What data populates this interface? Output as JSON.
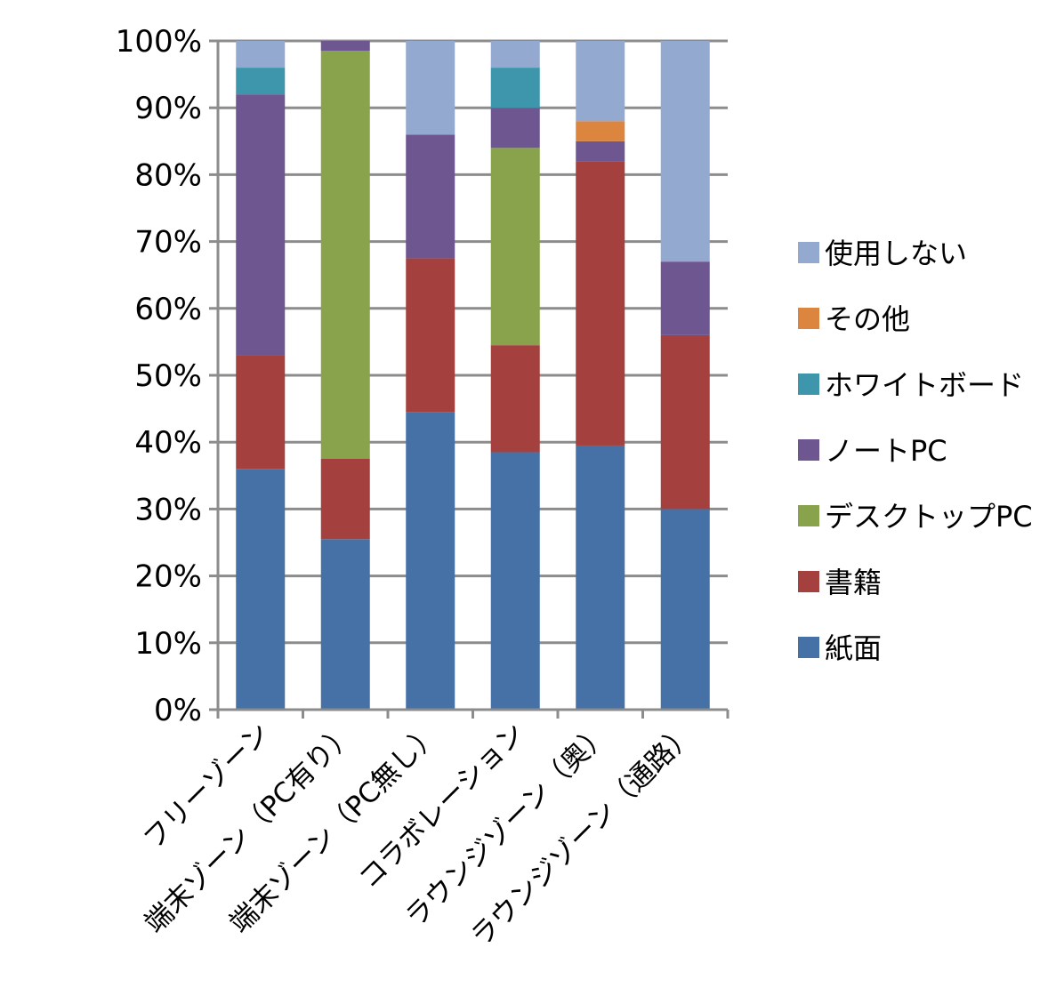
{
  "chart_data": {
    "type": "bar",
    "stacked": true,
    "percent_stacked": true,
    "title": "",
    "xlabel": "",
    "ylabel": "",
    "ylim": [
      0,
      100
    ],
    "y_ticks": [
      "0%",
      "10%",
      "20%",
      "30%",
      "40%",
      "50%",
      "60%",
      "70%",
      "80%",
      "90%",
      "100%"
    ],
    "grid": true,
    "legend_position": "right",
    "categories": [
      "フリーゾーン",
      "端末ゾーン（PC有り）",
      "端末ゾーン（PC無し）",
      "コラボレーション",
      "ラウンジゾーン（奥）",
      "ラウンジゾーン（通路）"
    ],
    "series": [
      {
        "name": "紙面",
        "color": "#4571A6",
        "values": [
          36,
          25.5,
          44.5,
          38.5,
          39.5,
          30
        ]
      },
      {
        "name": "書籍",
        "color": "#A4403D",
        "values": [
          17,
          12,
          23,
          16,
          42.5,
          26
        ]
      },
      {
        "name": "デスクトップPC",
        "color": "#89A34C",
        "values": [
          0,
          61,
          0,
          29.5,
          0,
          0
        ]
      },
      {
        "name": "ノートPC",
        "color": "#6E5690",
        "values": [
          39,
          1.5,
          18.5,
          6,
          3,
          11
        ]
      },
      {
        "name": "ホワイトボード",
        "color": "#3D96AB",
        "values": [
          4,
          0,
          0,
          6,
          0,
          0
        ]
      },
      {
        "name": "その他",
        "color": "#DB853F",
        "values": [
          0,
          0,
          0,
          0,
          3,
          0
        ]
      },
      {
        "name": "使用しない",
        "color": "#93A9CF",
        "values": [
          4,
          0,
          14,
          4,
          12,
          33
        ]
      }
    ],
    "legend_order": [
      "使用しない",
      "その他",
      "ホワイトボード",
      "ノートPC",
      "デスクトップPC",
      "書籍",
      "紙面"
    ]
  }
}
